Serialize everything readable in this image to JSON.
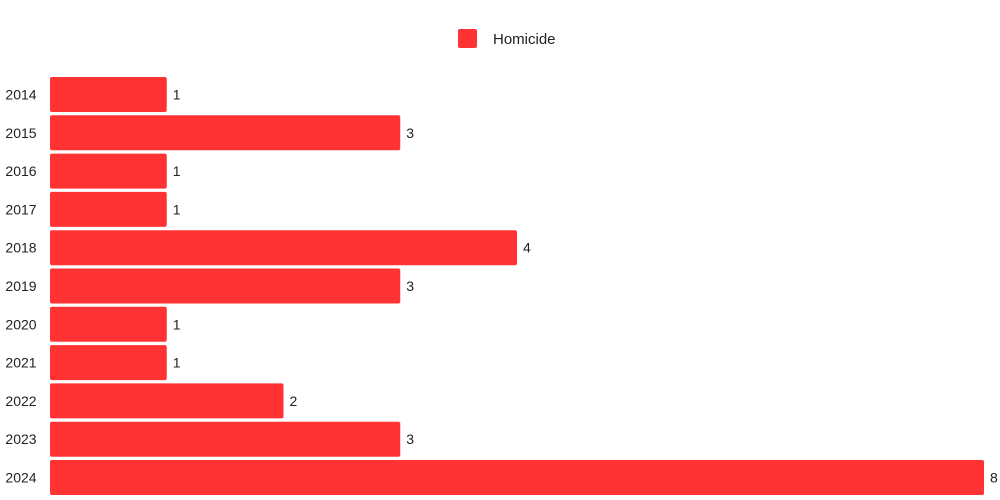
{
  "chart_data": {
    "type": "bar",
    "orientation": "horizontal",
    "categories": [
      "2014",
      "2015",
      "2016",
      "2017",
      "2018",
      "2019",
      "2020",
      "2021",
      "2022",
      "2023",
      "2024"
    ],
    "series": [
      {
        "name": "Homicide",
        "values": [
          1,
          3,
          1,
          1,
          4,
          3,
          1,
          1,
          2,
          3,
          8
        ],
        "color": "#ff3333"
      }
    ],
    "xlim": [
      0,
      8
    ],
    "grid": false,
    "legend_position": "top-center",
    "data_labels": true
  }
}
